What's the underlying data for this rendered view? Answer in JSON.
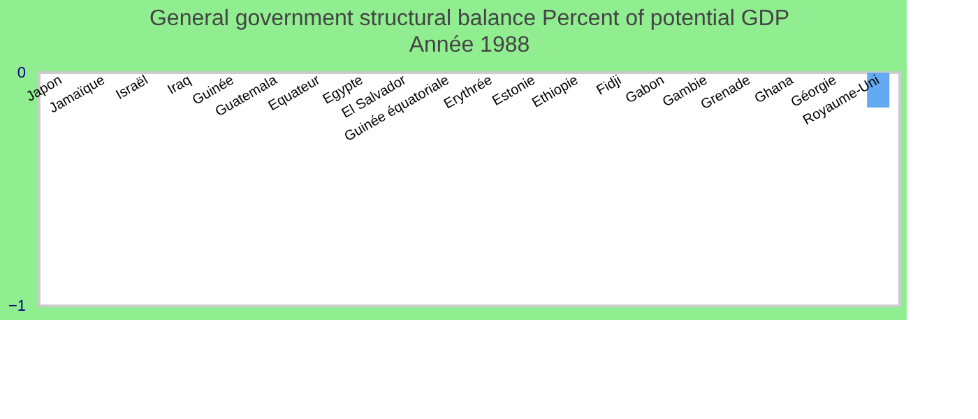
{
  "chart_data": {
    "type": "bar",
    "title": "General government structural balance  Percent of potential GDP",
    "subtitle": "Année 1988",
    "categories": [
      "Japon",
      "Jamaïque",
      "Israël",
      "Iraq",
      "Guinée",
      "Guatemala",
      "Equateur",
      "Egypte",
      "El Salvador",
      "Guinée équatoriale",
      "Erythrée",
      "Estonie",
      "Ethiopie",
      "Fidji",
      "Gabon",
      "Gambie",
      "Grenade",
      "Ghana",
      "Géorgie",
      "Royaume-Uni"
    ],
    "values": [
      null,
      null,
      null,
      null,
      null,
      null,
      null,
      null,
      null,
      null,
      null,
      null,
      null,
      null,
      null,
      null,
      null,
      null,
      null,
      -0.15
    ],
    "color": "#64aaf2",
    "ylim": [
      -1,
      0
    ],
    "yticks": [
      -1,
      0
    ],
    "grid": false
  }
}
